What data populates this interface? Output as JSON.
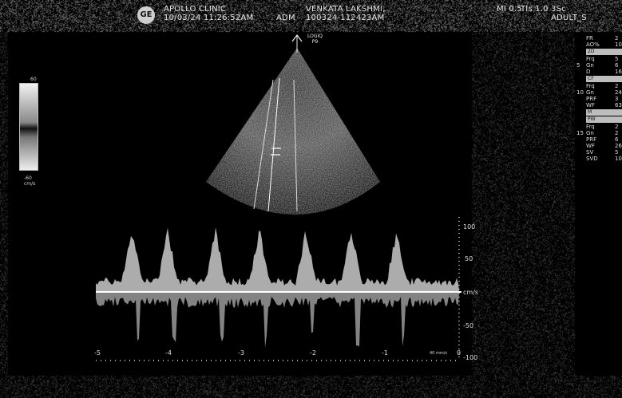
{
  "header": {
    "clinic": "APOLLO CLINIC",
    "datetime": "10/03/24 11:26:52AM",
    "operator": "ADM",
    "patient_name": "VENKATA LAKSHMI,",
    "patient_id": "100324-112423AM",
    "mi": "MI 0.5",
    "tis": "TIs 1.0",
    "probe_code": "3Sc",
    "preset": "ADULT_S"
  },
  "probe_label": {
    "line1": "LOGIQ",
    "line2": "P9"
  },
  "logo_text": "GE",
  "color_bar": {
    "top": "60",
    "bottom": "-60",
    "unit": "cm/s"
  },
  "right_panel": [
    {
      "label": "FR",
      "value": "2"
    },
    {
      "label": "AO%",
      "value": "10"
    },
    {
      "section": "2D"
    },
    {
      "label": "Frq",
      "value": "5"
    },
    {
      "depth": "5",
      "label": "Gn",
      "value": "6"
    },
    {
      "label": "D",
      "value": "16"
    },
    {
      "section": "CF"
    },
    {
      "label": "Frq",
      "value": "2"
    },
    {
      "depth": "10",
      "label": "Gn",
      "value": "24"
    },
    {
      "label": "PRF",
      "value": "3"
    },
    {
      "label": "WF",
      "value": "63"
    },
    {
      "section": "M"
    },
    {
      "section": "PW"
    },
    {
      "label": "Frq",
      "value": "2"
    },
    {
      "depth": "15",
      "label": "Gn",
      "value": "2"
    },
    {
      "label": "PRF",
      "value": "6"
    },
    {
      "label": "WF",
      "value": "26"
    },
    {
      "label": "SV",
      "value": "5"
    },
    {
      "label": "SVD",
      "value": "10"
    }
  ],
  "doppler_scale": {
    "ticks": [
      "100",
      "50",
      "cm/s",
      "-50",
      "-100"
    ],
    "x_ticks": [
      "-5",
      "-4",
      "-3",
      "-2",
      "-1",
      "0"
    ],
    "time_unit": "40 mm/s"
  }
}
